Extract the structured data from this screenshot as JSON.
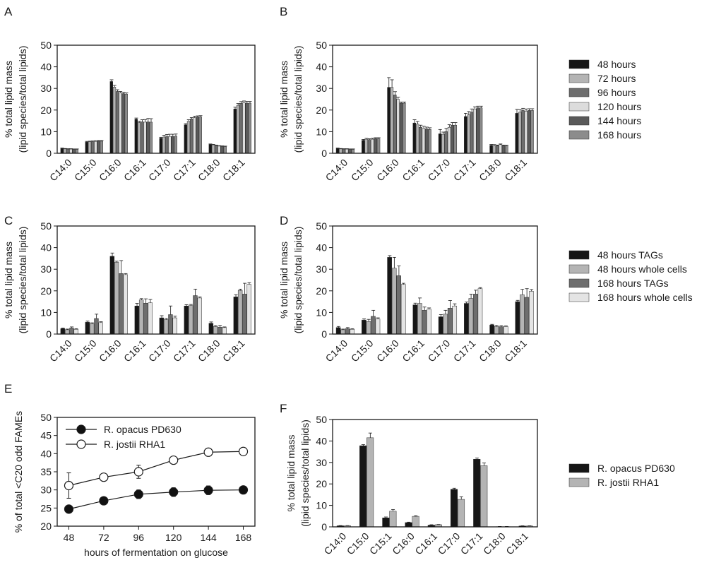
{
  "colors": {
    "axis": "#1a1a1a",
    "fill_scale_6": [
      "#161616",
      "#b4b4b4",
      "#6e6e6e",
      "#dcdcdc",
      "#5a5a5a",
      "#8c8c8c"
    ],
    "fill_scale_4": [
      "#161616",
      "#b4b4b4",
      "#6e6e6e",
      "#e4e4e4"
    ],
    "fill_scale_2": [
      "#161616",
      "#b4b4b4"
    ]
  },
  "chart_data": [
    {
      "panel": "A",
      "type": "bar",
      "ylabel": [
        "% total lipid mass",
        "(lipid species/total lipids)"
      ],
      "ylim": [
        0,
        50
      ],
      "yticks": [
        0,
        10,
        20,
        30,
        40,
        50
      ],
      "categories": [
        "C14:0",
        "C15:0",
        "C16:0",
        "C16:1",
        "C17:0",
        "C17:1",
        "C18:0",
        "C18:1"
      ],
      "legend": null,
      "series": [
        {
          "values": [
            2.2,
            5.2,
            33.2,
            15.8,
            7.0,
            13.2,
            4.1,
            20.5
          ],
          "errors": [
            0.2,
            0.3,
            0.8,
            0.5,
            0.4,
            0.5,
            0.2,
            0.8
          ]
        },
        {
          "values": [
            2.0,
            5.3,
            30.6,
            14.2,
            7.5,
            14.8,
            3.9,
            22.2
          ],
          "errors": [
            0.2,
            0.3,
            0.8,
            0.6,
            0.8,
            0.7,
            0.2,
            0.8
          ]
        },
        {
          "values": [
            1.9,
            5.4,
            28.6,
            14.5,
            7.7,
            15.9,
            3.6,
            23.1
          ],
          "errors": [
            0.2,
            0.3,
            0.8,
            1.0,
            1.0,
            0.6,
            0.2,
            0.8
          ]
        },
        {
          "values": [
            1.9,
            5.5,
            28.0,
            14.4,
            7.8,
            16.5,
            3.3,
            23.4
          ],
          "errors": [
            0.2,
            0.3,
            0.6,
            1.2,
            1.0,
            0.6,
            0.2,
            0.8
          ]
        },
        {
          "values": [
            1.8,
            5.6,
            27.6,
            14.5,
            7.8,
            16.8,
            3.2,
            23.2
          ],
          "errors": [
            0.2,
            0.3,
            0.6,
            1.6,
            1.0,
            0.5,
            0.2,
            0.8
          ]
        },
        {
          "values": [
            1.8,
            5.6,
            27.4,
            14.4,
            7.9,
            16.9,
            3.1,
            23.2
          ],
          "errors": [
            0.2,
            0.3,
            0.5,
            1.6,
            1.0,
            0.5,
            0.2,
            0.8
          ]
        }
      ]
    },
    {
      "panel": "B",
      "type": "bar",
      "ylabel": [
        "% total lipid mass",
        "(lipid species/total lipids)"
      ],
      "ylim": [
        0,
        50
      ],
      "yticks": [
        0,
        10,
        20,
        30,
        40,
        50
      ],
      "categories": [
        "C14:0",
        "C15:0",
        "C16:0",
        "C16:1",
        "C17:0",
        "C17:1",
        "C18:0",
        "C18:1"
      ],
      "legend": [
        "48 hours",
        "72 hours",
        "96 hours",
        "120 hours",
        "144 hours",
        "168 hours"
      ],
      "series": [
        {
          "name": "48 hours",
          "values": [
            2.2,
            6.0,
            30.5,
            14.0,
            9.0,
            17.0,
            3.7,
            18.5
          ],
          "errors": [
            0.2,
            0.4,
            4.5,
            1.5,
            2.0,
            1.5,
            0.4,
            1.8
          ]
        },
        {
          "name": "72 hours",
          "values": [
            2.0,
            6.5,
            30.5,
            13.5,
            8.8,
            17.8,
            3.6,
            19.0
          ],
          "errors": [
            0.2,
            0.4,
            3.5,
            1.2,
            1.0,
            1.5,
            0.4,
            1.2
          ]
        },
        {
          "name": "96 hours",
          "values": [
            1.9,
            6.3,
            27.0,
            12.0,
            10.0,
            19.0,
            3.5,
            19.8
          ],
          "errors": [
            0.2,
            0.4,
            1.5,
            1.0,
            1.5,
            1.5,
            0.3,
            1.0
          ]
        },
        {
          "name": "120 hours",
          "values": [
            1.9,
            6.5,
            25.0,
            11.5,
            12.0,
            20.5,
            4.0,
            19.5
          ],
          "errors": [
            0.2,
            0.4,
            1.0,
            1.0,
            1.2,
            1.0,
            0.3,
            1.0
          ]
        },
        {
          "name": "144 hours",
          "values": [
            1.8,
            6.8,
            23.2,
            11.3,
            13.0,
            21.0,
            3.5,
            19.8
          ],
          "errors": [
            0.2,
            0.4,
            0.5,
            0.8,
            1.2,
            0.8,
            0.3,
            0.8
          ]
        },
        {
          "name": "168 hours",
          "values": [
            1.8,
            6.8,
            23.2,
            11.0,
            13.0,
            21.0,
            3.4,
            19.8
          ],
          "errors": [
            0.2,
            0.4,
            0.5,
            0.8,
            1.2,
            0.8,
            0.3,
            0.8
          ]
        }
      ]
    },
    {
      "panel": "C",
      "type": "bar",
      "ylabel": [
        "% total lipid mass",
        "(lipid species/total lipids)"
      ],
      "ylim": [
        0,
        50
      ],
      "yticks": [
        0,
        10,
        20,
        30,
        40,
        50
      ],
      "categories": [
        "C14:0",
        "C15:0",
        "C16:0",
        "C16:1",
        "C17:0",
        "C17:1",
        "C18:0",
        "C18:1"
      ],
      "legend": null,
      "series": [
        {
          "values": [
            2.5,
            5.5,
            36.0,
            13.0,
            7.5,
            13.0,
            5.0,
            17.2
          ],
          "errors": [
            0.3,
            0.5,
            1.5,
            1.2,
            1.0,
            0.6,
            0.6,
            1.0
          ]
        },
        {
          "values": [
            2.0,
            4.8,
            33.2,
            15.8,
            6.7,
            13.2,
            3.5,
            20.2
          ],
          "errors": [
            0.3,
            0.4,
            0.5,
            0.6,
            0.5,
            0.5,
            0.4,
            0.6
          ]
        },
        {
          "values": [
            2.8,
            7.2,
            28.0,
            14.3,
            9.0,
            17.8,
            3.2,
            18.5
          ],
          "errors": [
            0.5,
            2.0,
            6.0,
            2.0,
            4.0,
            3.0,
            0.8,
            5.0
          ]
        },
        {
          "values": [
            2.2,
            5.3,
            27.5,
            14.5,
            7.5,
            16.7,
            3.0,
            23.0
          ],
          "errors": [
            0.3,
            0.4,
            0.5,
            1.5,
            0.8,
            0.5,
            0.3,
            0.8
          ]
        }
      ]
    },
    {
      "panel": "D",
      "type": "bar",
      "ylabel": [
        "% total lipid mass",
        "(lipid species/total lipids)"
      ],
      "ylim": [
        0,
        50
      ],
      "yticks": [
        0,
        10,
        20,
        30,
        40,
        50
      ],
      "categories": [
        "C14:0",
        "C15:0",
        "C16:0",
        "C16:1",
        "C17:0",
        "C17:1",
        "C18:0",
        "C18:1"
      ],
      "legend": [
        "48 hours TAGs",
        "48 hours whole cells",
        "168 hours TAGs",
        "168 hours whole cells"
      ],
      "series": [
        {
          "name": "48 hours TAGs",
          "values": [
            3.0,
            6.5,
            35.5,
            13.5,
            8.0,
            14.2,
            4.2,
            15.0
          ],
          "errors": [
            0.5,
            0.5,
            0.8,
            0.8,
            1.0,
            0.6,
            0.3,
            0.6
          ]
        },
        {
          "name": "48 hours whole cells",
          "values": [
            2.0,
            5.8,
            30.5,
            14.2,
            9.2,
            16.5,
            3.5,
            18.2
          ],
          "errors": [
            0.3,
            1.0,
            5.0,
            2.5,
            1.8,
            2.0,
            0.5,
            2.5
          ]
        },
        {
          "name": "168 hours TAGs",
          "values": [
            2.5,
            8.2,
            27.0,
            11.0,
            12.0,
            18.5,
            3.4,
            17.0
          ],
          "errors": [
            0.5,
            2.8,
            4.5,
            1.5,
            3.5,
            1.8,
            0.5,
            4.0
          ]
        },
        {
          "name": "168 hours whole cells",
          "values": [
            2.2,
            7.0,
            23.0,
            11.5,
            13.0,
            21.0,
            3.5,
            19.8
          ],
          "errors": [
            0.3,
            0.5,
            0.5,
            0.6,
            1.0,
            0.5,
            0.3,
            0.8
          ]
        }
      ]
    },
    {
      "panel": "E",
      "type": "line",
      "ylabel": "% of total <C20 odd FAMEs",
      "xlabel": "hours of fermentation on glucose",
      "x": [
        48,
        72,
        96,
        120,
        144,
        168
      ],
      "xlim": [
        40,
        176
      ],
      "ylim": [
        20,
        50
      ],
      "yticks": [
        20,
        25,
        30,
        35,
        40,
        45,
        50
      ],
      "legend_placement": "top-left",
      "series": [
        {
          "name": "R. opacus PD630",
          "marker": "filled-circle",
          "values": [
            24.7,
            27.0,
            28.8,
            29.4,
            29.9,
            30.0
          ],
          "errors": [
            0.6,
            1.0,
            1.2,
            1.2,
            1.2,
            1.0
          ]
        },
        {
          "name": "R. jostii RHA1",
          "marker": "open-circle",
          "values": [
            31.2,
            33.5,
            35.0,
            38.2,
            40.4,
            40.6
          ],
          "errors": [
            3.5,
            0.8,
            1.8,
            1.0,
            1.0,
            0.8
          ]
        }
      ]
    },
    {
      "panel": "F",
      "type": "bar",
      "ylabel": [
        "% total lipid mass",
        "(lipid species/total lipids)"
      ],
      "ylim": [
        0,
        50
      ],
      "yticks": [
        0,
        10,
        20,
        30,
        40,
        50
      ],
      "categories": [
        "C14:0",
        "C15:0",
        "C15:1",
        "C16:0",
        "C16:1",
        "C17:0",
        "C17:1",
        "C18:0",
        "C18:1"
      ],
      "legend": [
        "R. opacus PD630",
        "R. jostii RHA1"
      ],
      "series": [
        {
          "name": "R. opacus PD630",
          "values": [
            0.5,
            37.8,
            4.2,
            2.0,
            0.8,
            17.5,
            31.5,
            0.1,
            0.4
          ],
          "errors": [
            0.1,
            0.5,
            0.4,
            0.2,
            0.2,
            0.5,
            0.6,
            0.1,
            0.1
          ]
        },
        {
          "name": "R. jostii RHA1",
          "values": [
            0.5,
            41.5,
            7.3,
            4.9,
            1.0,
            12.8,
            28.5,
            0.1,
            0.4
          ],
          "errors": [
            0.1,
            2.2,
            0.8,
            0.3,
            0.1,
            1.2,
            1.3,
            0.1,
            0.1
          ]
        }
      ]
    }
  ]
}
